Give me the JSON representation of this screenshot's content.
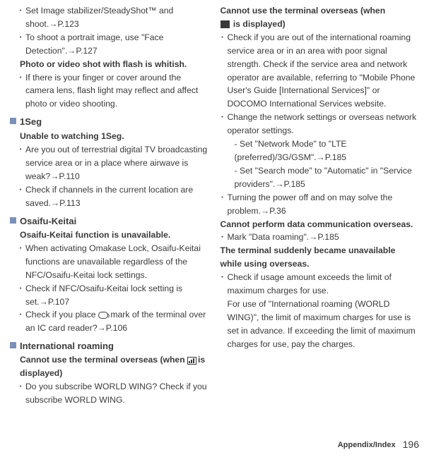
{
  "colL": {
    "b1": "Set Image stabilizer/SteadyShot™ and shoot.→P.123",
    "b2": "To shoot a portrait image, use \"Face Detection\".→P.127",
    "h1": "Photo or video shot with flash is whitish.",
    "b3": "If there is your finger or cover around the camera lens, flash light may reflect and affect photo or video shooting.",
    "sec1": "1Seg",
    "s1h": "Unable to watching 1Seg.",
    "s1b1": "Are you out of terrestrial digital TV broadcasting service area or in a place where airwave is weak?→P.110",
    "s1b2": "Check if channels in the current location are saved.→P.113",
    "sec2": "Osaifu-Keitai",
    "s2h": "Osaifu-Keitai function is unavailable.",
    "s2b1": "When activating Omakase Lock, Osaifu-Keitai functions are unavailable regardless of the NFC/Osaifu-Keitai lock settings.",
    "s2b2": "Check if NFC/Osaifu-Keitai lock setting is set.→P.107",
    "s2b3a": "Check if you place ",
    "s2b3b": " mark of the terminal over an IC card reader?→P.106",
    "sec3": "International roaming",
    "s3h1": "Cannot use the terminal overseas (when ",
    "s3h2": "is displayed)",
    "s3b1": "Do you subscribe WORLD WING? Check if you subscribe WORLD WING."
  },
  "colR": {
    "h1a": "Cannot use the terminal overseas (when ",
    "h1b": " is displayed)",
    "b1": "Check if you are out of the international roaming service area or in an area with poor signal strength. Check if the service area and network operator are available, referring to \"Mobile Phone User's Guide [International Services]\" or DOCOMO International Services website.",
    "b2": "Change the network settings or overseas network operator settings.",
    "b2n1": "- Set \"Network Mode\" to \"LTE (preferred)/3G/GSM\".→P.185",
    "b2n2": "- Set \"Search mode\" to \"Automatic\" in \"Service providers\".→P.185",
    "b3": "Turning the power off and on may solve the problem.→P.36",
    "h2": "Cannot perform data communication overseas.",
    "b4": "Mark \"Data roaming\".→P.185",
    "h3": "The terminal suddenly became unavailable while using overseas.",
    "b5": "Check if usage amount exceeds the limit of maximum charges for use.\nFor use of \"International roaming (WORLD WING)\", the limit of maximum charges for use is set in advance. If exceeding the limit of maximum charges for use, pay the charges."
  },
  "footer": {
    "label": "Appendix/Index",
    "page": "196"
  }
}
